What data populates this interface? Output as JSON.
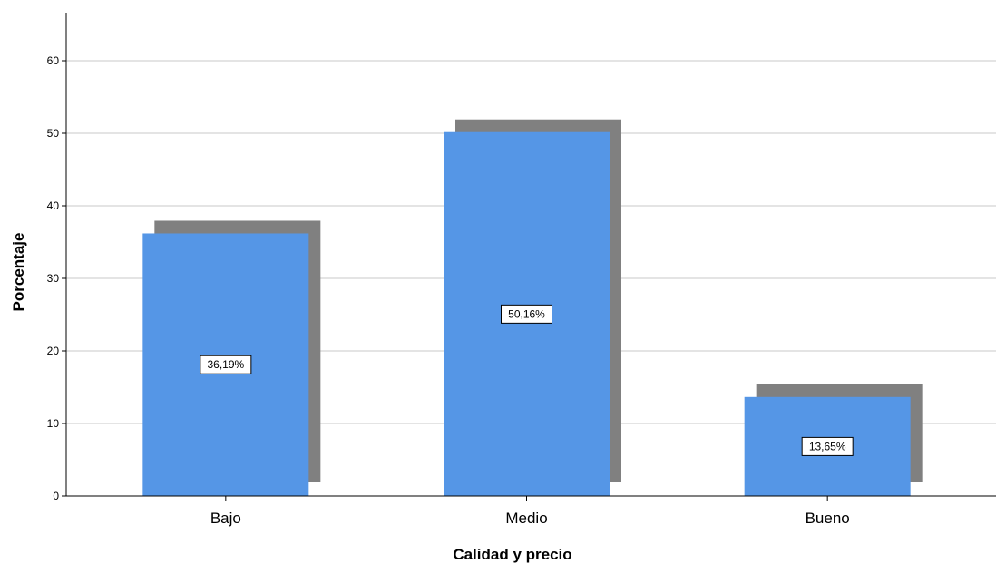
{
  "chart_data": {
    "type": "bar",
    "categories": [
      "Bajo",
      "Medio",
      "Bueno"
    ],
    "values": [
      36.19,
      50.16,
      13.65
    ],
    "data_labels": [
      "36,19%",
      "50,16%",
      "13,65%"
    ],
    "title": "",
    "xlabel": "Calidad y precio",
    "ylabel": "Porcentaje",
    "ylim": [
      0,
      66
    ],
    "yticks": [
      0,
      10,
      20,
      30,
      40,
      50,
      60
    ],
    "grid": true,
    "bar_style": "3d-shadow",
    "colors": {
      "bar": "#5596E6",
      "shadow": "#808080",
      "grid": "#C8C8C8",
      "axis": "#000000"
    }
  }
}
